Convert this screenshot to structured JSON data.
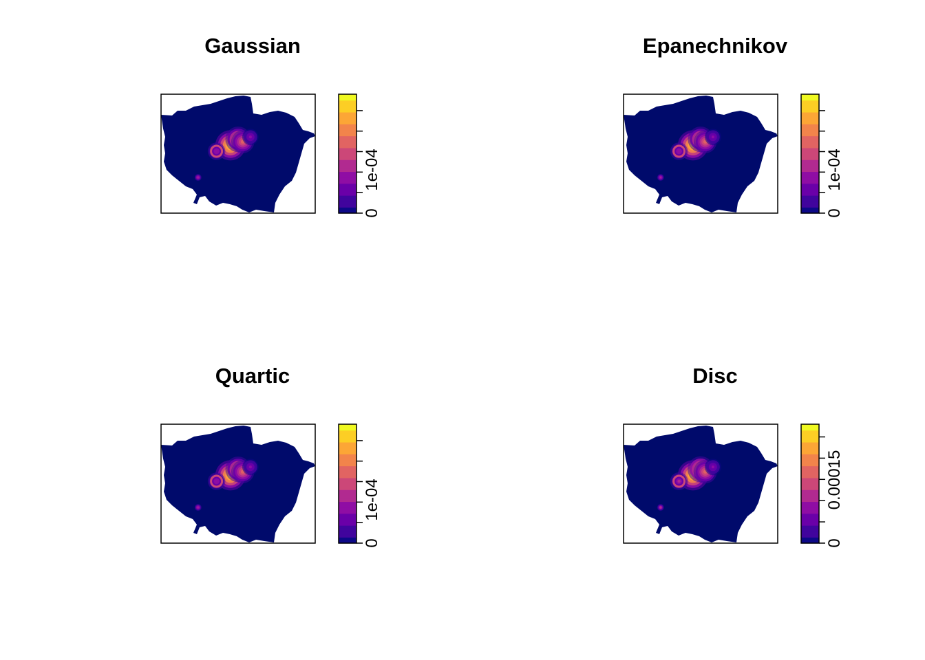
{
  "chart_data": [
    {
      "type": "heatmap",
      "title": "Gaussian",
      "colorbar": {
        "ticks": [
          0,
          5e-05,
          0.0001,
          0.00015,
          0.0002,
          0.00025
        ],
        "tick_labels": [
          "0",
          "1e-04"
        ],
        "label_values": [
          0,
          0.0001
        ],
        "range": [
          0,
          0.00029
        ]
      },
      "hotspots": [
        {
          "x": 0.45,
          "y": 0.43,
          "value": 0.00029
        },
        {
          "x": 0.5,
          "y": 0.38,
          "value": 0.00022
        },
        {
          "x": 0.53,
          "y": 0.4,
          "value": 0.00018
        },
        {
          "x": 0.36,
          "y": 0.48,
          "value": 0.0001
        },
        {
          "x": 0.24,
          "y": 0.7,
          "value": 0.00012
        },
        {
          "x": 0.58,
          "y": 0.36,
          "value": 8e-05
        }
      ]
    },
    {
      "type": "heatmap",
      "title": "Epanechnikov",
      "colorbar": {
        "ticks": [
          0,
          5e-05,
          0.0001,
          0.00015,
          0.0002,
          0.00025
        ],
        "tick_labels": [
          "0",
          "1e-04"
        ],
        "label_values": [
          0,
          0.0001
        ],
        "range": [
          0,
          0.00029
        ]
      },
      "hotspots": [
        {
          "x": 0.45,
          "y": 0.43,
          "value": 0.00029
        },
        {
          "x": 0.5,
          "y": 0.38,
          "value": 0.00022
        },
        {
          "x": 0.53,
          "y": 0.4,
          "value": 0.00018
        },
        {
          "x": 0.36,
          "y": 0.48,
          "value": 0.0001
        },
        {
          "x": 0.24,
          "y": 0.7,
          "value": 0.00012
        },
        {
          "x": 0.58,
          "y": 0.36,
          "value": 8e-05
        }
      ]
    },
    {
      "type": "heatmap",
      "title": "Quartic",
      "colorbar": {
        "ticks": [
          0,
          5e-05,
          0.0001,
          0.00015,
          0.0002,
          0.00025
        ],
        "tick_labels": [
          "0",
          "1e-04"
        ],
        "label_values": [
          0,
          0.0001
        ],
        "range": [
          0,
          0.00029
        ]
      },
      "hotspots": [
        {
          "x": 0.45,
          "y": 0.43,
          "value": 0.00029
        },
        {
          "x": 0.5,
          "y": 0.38,
          "value": 0.00022
        },
        {
          "x": 0.53,
          "y": 0.4,
          "value": 0.00018
        },
        {
          "x": 0.36,
          "y": 0.48,
          "value": 0.0001
        },
        {
          "x": 0.24,
          "y": 0.7,
          "value": 0.00012
        },
        {
          "x": 0.58,
          "y": 0.36,
          "value": 8e-05
        }
      ]
    },
    {
      "type": "heatmap",
      "title": "Disc",
      "colorbar": {
        "ticks": [
          0,
          5e-05,
          0.0001,
          0.00015,
          0.0002,
          0.00025
        ],
        "tick_labels": [
          "0",
          "0.00015"
        ],
        "label_values": [
          0,
          0.00015
        ],
        "range": [
          0,
          0.00028
        ]
      },
      "hotspots": [
        {
          "x": 0.45,
          "y": 0.43,
          "value": 0.00028
        },
        {
          "x": 0.5,
          "y": 0.38,
          "value": 0.00022
        },
        {
          "x": 0.53,
          "y": 0.4,
          "value": 0.00018
        },
        {
          "x": 0.36,
          "y": 0.48,
          "value": 0.0001
        },
        {
          "x": 0.24,
          "y": 0.7,
          "value": 0.00012
        },
        {
          "x": 0.58,
          "y": 0.36,
          "value": 8e-05
        }
      ]
    }
  ],
  "colors": {
    "background_fill": "#000a6b",
    "palette": [
      "#0d0887",
      "#41049d",
      "#6a00a8",
      "#8f0da4",
      "#b12a90",
      "#cc4778",
      "#e16462",
      "#f2844b",
      "#fca636",
      "#fcce25",
      "#f0f921"
    ]
  }
}
